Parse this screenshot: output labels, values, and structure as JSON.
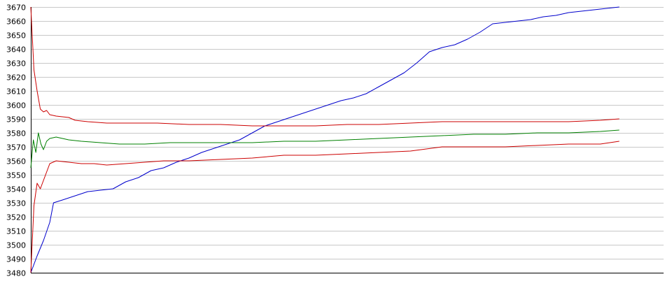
{
  "chart_data": {
    "type": "line",
    "title": "",
    "xlabel": "",
    "ylabel": "",
    "ylim": [
      3480,
      3670
    ],
    "xlim": [
      0,
      100
    ],
    "yticks": [
      3670,
      3660,
      3650,
      3640,
      3630,
      3620,
      3610,
      3600,
      3590,
      3580,
      3570,
      3560,
      3550,
      3540,
      3530,
      3520,
      3510,
      3500,
      3490,
      3480
    ],
    "grid": "horizontal",
    "legend": "none",
    "series": [
      {
        "color": "#0000cc",
        "points": [
          [
            0,
            3480
          ],
          [
            1,
            3492
          ],
          [
            2,
            3503
          ],
          [
            3,
            3516
          ],
          [
            3.6,
            3530
          ],
          [
            5,
            3532
          ],
          [
            7,
            3535
          ],
          [
            9,
            3538
          ],
          [
            11,
            3539
          ],
          [
            13,
            3540
          ],
          [
            15,
            3545
          ],
          [
            17,
            3548
          ],
          [
            19,
            3553
          ],
          [
            21,
            3555
          ],
          [
            23,
            3559
          ],
          [
            25,
            3562
          ],
          [
            27,
            3566
          ],
          [
            29,
            3569
          ],
          [
            31,
            3572
          ],
          [
            33,
            3575
          ],
          [
            35,
            3580
          ],
          [
            37,
            3585
          ],
          [
            39,
            3588
          ],
          [
            41,
            3591
          ],
          [
            43,
            3594
          ],
          [
            45,
            3597
          ],
          [
            47,
            3600
          ],
          [
            49,
            3603
          ],
          [
            51,
            3605
          ],
          [
            53,
            3608
          ],
          [
            55,
            3613
          ],
          [
            57,
            3618
          ],
          [
            59,
            3623
          ],
          [
            61,
            3630
          ],
          [
            63,
            3638
          ],
          [
            65,
            3641
          ],
          [
            67,
            3643
          ],
          [
            69,
            3647
          ],
          [
            71,
            3652
          ],
          [
            73,
            3658
          ],
          [
            75,
            3659
          ],
          [
            77,
            3660
          ],
          [
            79,
            3661
          ],
          [
            81,
            3663
          ],
          [
            83,
            3664
          ],
          [
            85,
            3666
          ],
          [
            87,
            3667
          ],
          [
            89,
            3668
          ],
          [
            91,
            3669
          ],
          [
            93,
            3670
          ]
        ]
      },
      {
        "color": "#cc0000",
        "points": [
          [
            0,
            3670
          ],
          [
            0.5,
            3625
          ],
          [
            1,
            3610
          ],
          [
            1.5,
            3597
          ],
          [
            2,
            3595
          ],
          [
            2.5,
            3596
          ],
          [
            3,
            3593
          ],
          [
            4,
            3592
          ],
          [
            6,
            3591
          ],
          [
            7,
            3589
          ],
          [
            9,
            3588
          ],
          [
            12,
            3587
          ],
          [
            15,
            3587
          ],
          [
            20,
            3587
          ],
          [
            25,
            3586
          ],
          [
            30,
            3586
          ],
          [
            35,
            3585
          ],
          [
            40,
            3585
          ],
          [
            45,
            3585
          ],
          [
            50,
            3586
          ],
          [
            55,
            3586
          ],
          [
            60,
            3587
          ],
          [
            65,
            3588
          ],
          [
            70,
            3588
          ],
          [
            75,
            3588
          ],
          [
            80,
            3588
          ],
          [
            85,
            3588
          ],
          [
            90,
            3589
          ],
          [
            93,
            3590
          ]
        ]
      },
      {
        "color": "#008000",
        "points": [
          [
            0,
            3555
          ],
          [
            0.4,
            3575
          ],
          [
            0.8,
            3566
          ],
          [
            1.2,
            3580
          ],
          [
            1.6,
            3572
          ],
          [
            2,
            3568
          ],
          [
            2.5,
            3574
          ],
          [
            3,
            3576
          ],
          [
            4,
            3577
          ],
          [
            6,
            3575
          ],
          [
            8,
            3574
          ],
          [
            11,
            3573
          ],
          [
            14,
            3572
          ],
          [
            18,
            3572
          ],
          [
            22,
            3573
          ],
          [
            26,
            3573
          ],
          [
            30,
            3573
          ],
          [
            35,
            3573
          ],
          [
            40,
            3574
          ],
          [
            45,
            3574
          ],
          [
            50,
            3575
          ],
          [
            55,
            3576
          ],
          [
            60,
            3577
          ],
          [
            65,
            3578
          ],
          [
            70,
            3579
          ],
          [
            75,
            3579
          ],
          [
            80,
            3580
          ],
          [
            85,
            3580
          ],
          [
            90,
            3581
          ],
          [
            93,
            3582
          ]
        ]
      },
      {
        "color": "#cc0000",
        "points": [
          [
            0,
            3480
          ],
          [
            0.5,
            3528
          ],
          [
            1,
            3544
          ],
          [
            1.5,
            3540
          ],
          [
            2,
            3546
          ],
          [
            2.5,
            3552
          ],
          [
            3,
            3558
          ],
          [
            4,
            3560
          ],
          [
            6,
            3559
          ],
          [
            8,
            3558
          ],
          [
            10,
            3558
          ],
          [
            12,
            3557
          ],
          [
            15,
            3558
          ],
          [
            18,
            3559
          ],
          [
            21,
            3560
          ],
          [
            25,
            3560
          ],
          [
            30,
            3561
          ],
          [
            35,
            3562
          ],
          [
            40,
            3564
          ],
          [
            45,
            3564
          ],
          [
            50,
            3565
          ],
          [
            55,
            3566
          ],
          [
            60,
            3567
          ],
          [
            65,
            3570
          ],
          [
            70,
            3570
          ],
          [
            75,
            3570
          ],
          [
            80,
            3571
          ],
          [
            85,
            3572
          ],
          [
            90,
            3572
          ],
          [
            93,
            3574
          ]
        ]
      }
    ]
  }
}
